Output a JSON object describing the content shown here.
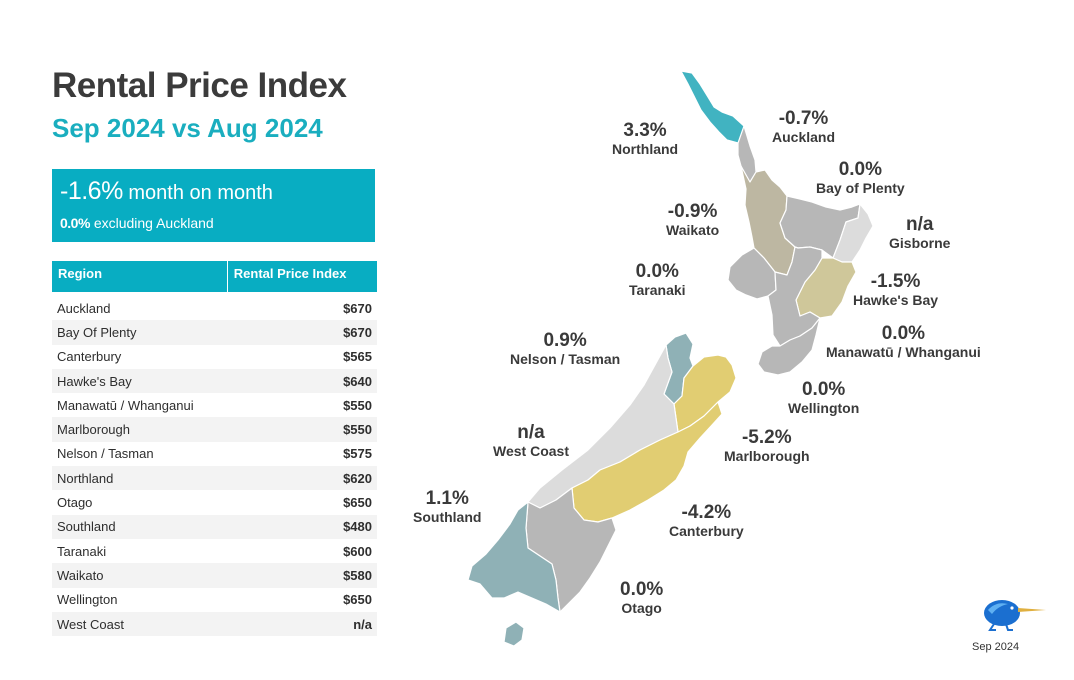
{
  "title": "Rental Price Index",
  "subtitle": "Sep 2024 vs Aug 2024",
  "kpi": {
    "main_value": "-1.6%",
    "main_text": "month on month",
    "sub_value": "0.0%",
    "sub_text": "excluding Auckland"
  },
  "table": {
    "headers": [
      "Region",
      "Rental Price Index"
    ],
    "rows": [
      {
        "region": "Auckland",
        "value": "$670"
      },
      {
        "region": "Bay Of Plenty",
        "value": "$670"
      },
      {
        "region": "Canterbury",
        "value": "$565"
      },
      {
        "region": "Hawke's Bay",
        "value": "$640"
      },
      {
        "region": "Manawatū / Whanganui",
        "value": "$550"
      },
      {
        "region": "Marlborough",
        "value": "$550"
      },
      {
        "region": "Nelson / Tasman",
        "value": "$575"
      },
      {
        "region": "Northland",
        "value": "$620"
      },
      {
        "region": "Otago",
        "value": "$650"
      },
      {
        "region": "Southland",
        "value": "$480"
      },
      {
        "region": "Taranaki",
        "value": "$600"
      },
      {
        "region": "Waikato",
        "value": "$580"
      },
      {
        "region": "Wellington",
        "value": "$650"
      },
      {
        "region": "West Coast",
        "value": "n/a"
      }
    ]
  },
  "map": {
    "regions": [
      {
        "name": "Northland",
        "change": "3.3%",
        "color": "#41b3c1"
      },
      {
        "name": "Auckland",
        "change": "-0.7%",
        "color": "#b7b7b7"
      },
      {
        "name": "Bay of Plenty",
        "change": "0.0%",
        "color": "#b7b7b7"
      },
      {
        "name": "Waikato",
        "change": "-0.9%",
        "color": "#bdb7a2"
      },
      {
        "name": "Gisborne",
        "change": "n/a",
        "color": "#dcdcdc"
      },
      {
        "name": "Taranaki",
        "change": "0.0%",
        "color": "#b7b7b7"
      },
      {
        "name": "Hawke's Bay",
        "change": "-1.5%",
        "color": "#cfc79a"
      },
      {
        "name": "Manawatū / Whanganui",
        "change": "0.0%",
        "color": "#b7b7b7"
      },
      {
        "name": "Wellington",
        "change": "0.0%",
        "color": "#b7b7b7"
      },
      {
        "name": "Nelson / Tasman",
        "change": "0.9%",
        "color": "#8fb1b6"
      },
      {
        "name": "Marlborough",
        "change": "-5.2%",
        "color": "#e1cd72"
      },
      {
        "name": "West Coast",
        "change": "n/a",
        "color": "#dcdcdc"
      },
      {
        "name": "Canterbury",
        "change": "-4.2%",
        "color": "#e1cd72"
      },
      {
        "name": "Southland",
        "change": "1.1%",
        "color": "#8fb1b6"
      },
      {
        "name": "Otago",
        "change": "0.0%",
        "color": "#b7b7b7"
      }
    ]
  },
  "footer": {
    "date": "Sep 2024"
  },
  "colors": {
    "accent": "#08adc2",
    "title": "#3b3b3b",
    "logo": "#1b6fd0"
  }
}
